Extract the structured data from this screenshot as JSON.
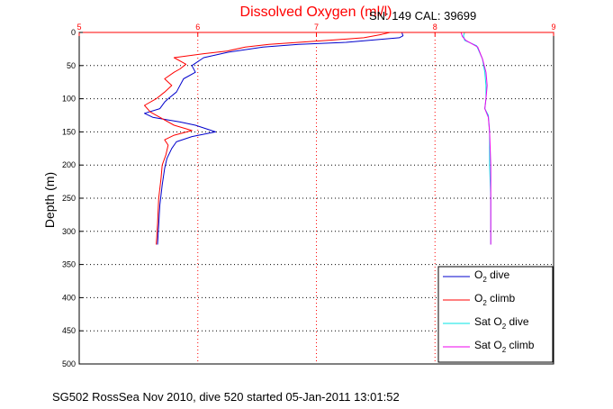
{
  "chart_data": {
    "type": "line",
    "title": "Dissolved Oxygen (ml/l)",
    "instrument": "SN: 149  CAL: 39699",
    "ylabel": "Depth (m)",
    "xlabel": "",
    "xlim": [
      5,
      9
    ],
    "ylim": [
      0,
      500
    ],
    "y_inverted": true,
    "x_axis_position": "top",
    "x_ticks": [
      5,
      6,
      7,
      8,
      9
    ],
    "y_ticks": [
      0,
      50,
      100,
      150,
      200,
      250,
      300,
      350,
      400,
      450,
      500
    ],
    "grid": true,
    "legend_position": "bottom-right",
    "footer": "SG502 RossSea Nov 2010, dive 520 started 05-Jan-2011 13:01:52",
    "series": [
      {
        "name": "O2 dive",
        "label_main": "O",
        "label_sub": "2",
        "label_rest": " dive",
        "color": "#0000cc",
        "points": [
          [
            7.72,
            0
          ],
          [
            7.73,
            5
          ],
          [
            7.7,
            8
          ],
          [
            7.25,
            15
          ],
          [
            6.85,
            18
          ],
          [
            6.55,
            22
          ],
          [
            6.25,
            30
          ],
          [
            6.05,
            38
          ],
          [
            5.95,
            50
          ],
          [
            5.98,
            60
          ],
          [
            5.88,
            70
          ],
          [
            5.82,
            90
          ],
          [
            5.75,
            100
          ],
          [
            5.72,
            105
          ],
          [
            5.68,
            115
          ],
          [
            5.55,
            122
          ],
          [
            5.62,
            128
          ],
          [
            5.85,
            135
          ],
          [
            5.98,
            140
          ],
          [
            6.15,
            150
          ],
          [
            5.95,
            157
          ],
          [
            5.82,
            165
          ],
          [
            5.78,
            175
          ],
          [
            5.74,
            190
          ],
          [
            5.72,
            205
          ],
          [
            5.7,
            230
          ],
          [
            5.68,
            260
          ],
          [
            5.67,
            290
          ],
          [
            5.66,
            320
          ]
        ]
      },
      {
        "name": "O2 climb",
        "label_main": "O",
        "label_sub": "2",
        "label_rest": " climb",
        "color": "#ff0000",
        "points": [
          [
            7.62,
            0
          ],
          [
            7.55,
            3
          ],
          [
            7.4,
            8
          ],
          [
            7.1,
            12
          ],
          [
            6.6,
            18
          ],
          [
            6.4,
            22
          ],
          [
            6.25,
            28
          ],
          [
            6.05,
            32
          ],
          [
            5.8,
            38
          ],
          [
            5.9,
            48
          ],
          [
            5.85,
            55
          ],
          [
            5.8,
            60
          ],
          [
            5.72,
            70
          ],
          [
            5.78,
            80
          ],
          [
            5.72,
            90
          ],
          [
            5.65,
            100
          ],
          [
            5.55,
            110
          ],
          [
            5.6,
            120
          ],
          [
            5.7,
            130
          ],
          [
            5.8,
            140
          ],
          [
            5.95,
            148
          ],
          [
            5.8,
            155
          ],
          [
            5.72,
            162
          ],
          [
            5.75,
            170
          ],
          [
            5.73,
            185
          ],
          [
            5.7,
            200
          ],
          [
            5.69,
            220
          ],
          [
            5.67,
            250
          ],
          [
            5.66,
            290
          ],
          [
            5.65,
            320
          ]
        ]
      },
      {
        "name": "Sat O2 dive",
        "label_main": "Sat O",
        "label_sub": "2",
        "label_rest": " dive",
        "color": "#00e5e5",
        "points": [
          [
            8.25,
            0
          ],
          [
            8.24,
            5
          ],
          [
            8.25,
            12
          ],
          [
            8.35,
            20
          ],
          [
            8.4,
            40
          ],
          [
            8.42,
            60
          ],
          [
            8.43,
            80
          ],
          [
            8.43,
            100
          ],
          [
            8.42,
            115
          ],
          [
            8.45,
            125
          ],
          [
            8.46,
            150
          ],
          [
            8.46,
            200
          ],
          [
            8.47,
            250
          ],
          [
            8.47,
            320
          ]
        ]
      },
      {
        "name": "Sat O2 climb",
        "label_main": "Sat O",
        "label_sub": "2",
        "label_rest": " climb",
        "color": "#ee00ee",
        "points": [
          [
            8.22,
            0
          ],
          [
            8.23,
            6
          ],
          [
            8.26,
            12
          ],
          [
            8.36,
            22
          ],
          [
            8.4,
            40
          ],
          [
            8.43,
            60
          ],
          [
            8.44,
            80
          ],
          [
            8.43,
            100
          ],
          [
            8.42,
            115
          ],
          [
            8.45,
            128
          ],
          [
            8.46,
            150
          ],
          [
            8.47,
            200
          ],
          [
            8.47,
            250
          ],
          [
            8.47,
            320
          ]
        ]
      }
    ]
  }
}
